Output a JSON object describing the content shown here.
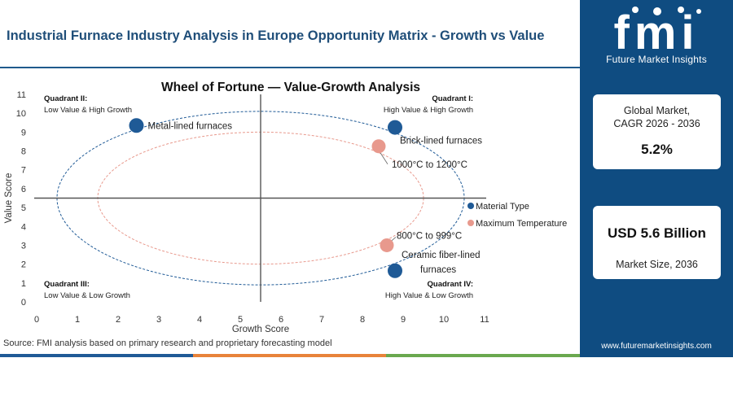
{
  "header": {
    "title": "Industrial Furnace Industry Analysis in Europe Opportunity Matrix - Growth vs Value"
  },
  "brand": {
    "logo_text": "fmi",
    "tagline": "Future Market Insights",
    "website": "www.futuremarketinsights.com",
    "panel_color": "#0f4c81"
  },
  "stats": {
    "cagr_label": "Global Market, CAGR 2026 - 2036",
    "cagr_value": "5.2%",
    "size_value": "USD 5.6 Billion",
    "size_label": "Market Size, 2036"
  },
  "source": "Source: FMI analysis based on primary research and proprietary forecasting model",
  "chart_data": {
    "type": "scatter",
    "title": "Wheel of Fortune — Value-Growth Analysis",
    "xlabel": "Growth Score",
    "ylabel": "Value Score",
    "xlim": [
      0,
      11
    ],
    "ylim": [
      0,
      11
    ],
    "x_ticks": [
      "0",
      "1",
      "2",
      "3",
      "4",
      "5",
      "6",
      "7",
      "8",
      "9",
      "10",
      "11"
    ],
    "y_ticks": [
      "0",
      "1",
      "2",
      "3",
      "4",
      "5",
      "6",
      "7",
      "8",
      "9",
      "10",
      "11"
    ],
    "divider": {
      "x": 5.5,
      "y": 5.5
    },
    "grid": false,
    "legend_position": "right",
    "quadrants": [
      {
        "title": "Quadrant II:",
        "subtitle": "Low Value & High Growth",
        "position": "top-left"
      },
      {
        "title": "Quadrant I:",
        "subtitle": "High Value & High Growth",
        "position": "top-right"
      },
      {
        "title": "Quadrant III:",
        "subtitle": "Low Value & Low Growth",
        "position": "bottom-left"
      },
      {
        "title": "Quadrant IV:",
        "subtitle": "High Value & Low Growth",
        "position": "bottom-right"
      }
    ],
    "series": [
      {
        "name": "Material Type",
        "color": "#1f5a96",
        "points": [
          {
            "label": "Metal-lined furnaces",
            "x": 2.45,
            "y": 9.35
          },
          {
            "label": "Brick-lined furnaces",
            "x": 8.8,
            "y": 9.25
          },
          {
            "label": "Ceramic fiber-lined furnaces",
            "x": 8.8,
            "y": 1.65
          }
        ]
      },
      {
        "name": "Maximum Temperature",
        "color": "#e8998d",
        "points": [
          {
            "label": "1000°C to 1200°C",
            "x": 8.4,
            "y": 8.25
          },
          {
            "label": "800°C to 999°C",
            "x": 8.6,
            "y": 3.0
          }
        ]
      }
    ]
  }
}
